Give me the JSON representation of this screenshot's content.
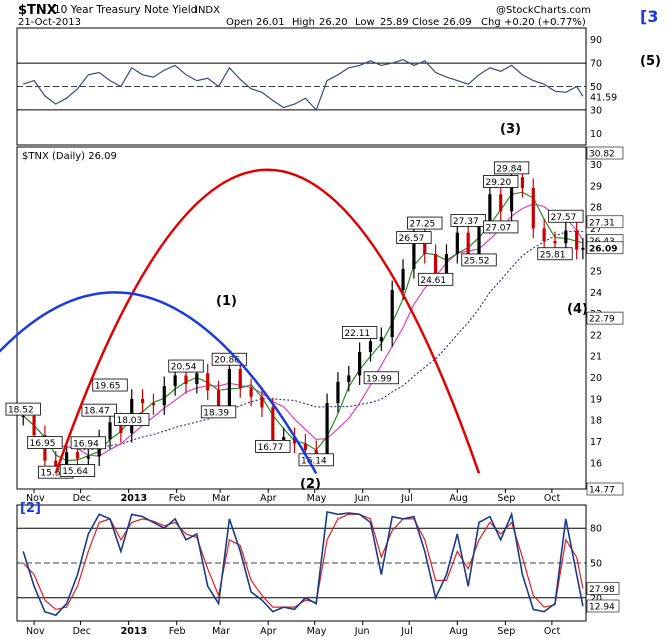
{
  "header": {
    "symbol": "$TNX",
    "name": "10 Year Treasury Note Yield",
    "exchange": "INDX",
    "date": "21-Oct-2013",
    "open_label": "Open",
    "open": "26.01",
    "high_label": "High",
    "high": "26.20",
    "low_label": "Low",
    "low": "25.89",
    "close_label": "Close",
    "close": "26.09",
    "chg_label": "Chg",
    "chg": "+0.20 (+0.77%)",
    "copyright": "@StockCharts.com"
  },
  "wave_labels": {
    "bracket3": "[3",
    "five": "(5)",
    "three": "(3)",
    "one": "(1)",
    "two": "(2)",
    "four": "(4)",
    "bracket2": "[2]"
  },
  "colors": {
    "price_up": "#000000",
    "price_down": "#cc0000",
    "rsi_line": "#3a4a7a",
    "rsi_overbought_fill": "#3a7bd5",
    "price_line_red": "#e02020",
    "ma_pink": "#e040c0",
    "ma_green": "#2a8a2a",
    "ma_darkblue": "#1a1a7a",
    "cycle_red": "#e00000",
    "cycle_blue": "#1a3adf",
    "stoch_blue": "#1a3a8a",
    "stoch_red": "#e02020",
    "panel_bg": "#ffffff",
    "frame": "#000000"
  },
  "chart_data": [
    {
      "type": "line",
      "panel": "RSI",
      "ylim": [
        0,
        100
      ],
      "yticks": [
        10,
        30,
        50,
        70,
        90
      ],
      "reference_lines": [
        30,
        50,
        70
      ],
      "last_value": "41.59",
      "x": [
        "2012-10-25",
        "2012-11-01",
        "2012-11-08",
        "2012-11-15",
        "2012-11-22",
        "2012-11-29",
        "2012-12-06",
        "2012-12-13",
        "2012-12-20",
        "2012-12-27",
        "2013-01-03",
        "2013-01-10",
        "2013-01-17",
        "2013-01-24",
        "2013-01-31",
        "2013-02-07",
        "2013-02-14",
        "2013-02-21",
        "2013-02-28",
        "2013-03-07",
        "2013-03-14",
        "2013-03-21",
        "2013-03-28",
        "2013-04-04",
        "2013-04-11",
        "2013-04-18",
        "2013-04-25",
        "2013-05-02",
        "2013-05-09",
        "2013-05-16",
        "2013-05-23",
        "2013-05-30",
        "2013-06-06",
        "2013-06-13",
        "2013-06-20",
        "2013-06-27",
        "2013-07-04",
        "2013-07-11",
        "2013-07-18",
        "2013-07-25",
        "2013-08-01",
        "2013-08-08",
        "2013-08-15",
        "2013-08-22",
        "2013-08-29",
        "2013-09-05",
        "2013-09-12",
        "2013-09-19",
        "2013-09-26",
        "2013-10-03",
        "2013-10-10",
        "2013-10-17",
        "2013-10-21"
      ],
      "values": [
        52,
        55,
        42,
        35,
        40,
        48,
        60,
        62,
        55,
        50,
        66,
        60,
        58,
        64,
        68,
        60,
        55,
        57,
        50,
        66,
        56,
        48,
        45,
        38,
        32,
        35,
        40,
        30,
        55,
        60,
        66,
        68,
        72,
        68,
        70,
        73,
        68,
        72,
        62,
        58,
        55,
        52,
        60,
        66,
        63,
        68,
        60,
        55,
        52,
        46,
        45,
        50,
        41.59
      ]
    },
    {
      "type": "candlestick",
      "panel": "Price",
      "title": "$TNX (Daily) 26.09",
      "ylim": [
        14.77,
        30.82
      ],
      "yticks": [
        16,
        17,
        18,
        19,
        20,
        21,
        22,
        23,
        24,
        25,
        26,
        27,
        28,
        29,
        30
      ],
      "xtick_labels": [
        "Nov",
        "Dec",
        "2013",
        "Feb",
        "Mar",
        "Apr",
        "May",
        "Jun",
        "Jul",
        "Aug",
        "Sep",
        "Oct"
      ],
      "last_value": "26.09",
      "right_axis_labels": [
        "30.82",
        "27.31",
        "26.43",
        "26.09",
        "22.79",
        "14.77"
      ],
      "x": [
        "2012-10-25",
        "2012-11-01",
        "2012-11-08",
        "2012-11-15",
        "2012-11-22",
        "2012-11-29",
        "2012-12-06",
        "2012-12-13",
        "2012-12-20",
        "2012-12-27",
        "2013-01-03",
        "2013-01-10",
        "2013-01-17",
        "2013-01-24",
        "2013-01-31",
        "2013-02-07",
        "2013-02-14",
        "2013-02-21",
        "2013-02-28",
        "2013-03-07",
        "2013-03-14",
        "2013-03-21",
        "2013-03-28",
        "2013-04-04",
        "2013-04-11",
        "2013-04-18",
        "2013-04-25",
        "2013-05-02",
        "2013-05-09",
        "2013-05-16",
        "2013-05-23",
        "2013-05-30",
        "2013-06-06",
        "2013-06-13",
        "2013-06-20",
        "2013-06-27",
        "2013-07-04",
        "2013-07-11",
        "2013-07-18",
        "2013-07-25",
        "2013-08-01",
        "2013-08-08",
        "2013-08-15",
        "2013-08-22",
        "2013-08-29",
        "2013-09-05",
        "2013-09-12",
        "2013-09-19",
        "2013-09-26",
        "2013-10-03",
        "2013-10-10",
        "2013-10-17",
        "2013-10-21"
      ],
      "close": [
        18.2,
        17.3,
        16.1,
        15.7,
        16.5,
        16.2,
        16.3,
        17.1,
        17.9,
        17.4,
        19.0,
        18.8,
        18.7,
        19.6,
        20.1,
        19.7,
        20.2,
        19.4,
        18.6,
        20.4,
        19.5,
        19.1,
        18.6,
        17.0,
        17.2,
        16.9,
        16.6,
        16.3,
        18.8,
        19.8,
        20.1,
        21.2,
        21.7,
        21.9,
        24.1,
        25.1,
        26.6,
        25.8,
        24.9,
        25.8,
        26.8,
        25.7,
        27.2,
        28.6,
        27.8,
        29.4,
        28.9,
        27.0,
        26.4,
        26.3,
        26.9,
        26.0,
        26.09
      ],
      "annotations": [
        {
          "label": "18.52",
          "date": "2012-10-25",
          "value": 18.52
        },
        {
          "label": "16.95",
          "date": "2012-11-08",
          "value": 16.95
        },
        {
          "label": "15.56",
          "date": "2012-11-15",
          "value": 15.56
        },
        {
          "label": "15.64",
          "date": "2012-11-29",
          "value": 15.64
        },
        {
          "label": "18.47",
          "date": "2012-12-13",
          "value": 18.47
        },
        {
          "label": "16.94",
          "date": "2012-12-06",
          "value": 16.94
        },
        {
          "label": "19.65",
          "date": "2012-12-20",
          "value": 19.65
        },
        {
          "label": "18.03",
          "date": "2013-01-03",
          "value": 18.03
        },
        {
          "label": "20.54",
          "date": "2013-02-07",
          "value": 20.54
        },
        {
          "label": "20.86",
          "date": "2013-03-07",
          "value": 20.86
        },
        {
          "label": "18.39",
          "date": "2013-02-28",
          "value": 18.39
        },
        {
          "label": "16.77",
          "date": "2013-04-04",
          "value": 16.77
        },
        {
          "label": "16.14",
          "date": "2013-05-02",
          "value": 16.14
        },
        {
          "label": "22.11",
          "date": "2013-05-30",
          "value": 22.11
        },
        {
          "label": "19.99",
          "date": "2013-06-13",
          "value": 19.99
        },
        {
          "label": "26.57",
          "date": "2013-07-04",
          "value": 26.57
        },
        {
          "label": "27.25",
          "date": "2013-07-11",
          "value": 27.25
        },
        {
          "label": "24.61",
          "date": "2013-07-18",
          "value": 24.61
        },
        {
          "label": "27.37",
          "date": "2013-08-08",
          "value": 27.37
        },
        {
          "label": "25.52",
          "date": "2013-08-15",
          "value": 25.52
        },
        {
          "label": "29.20",
          "date": "2013-08-29",
          "value": 29.2
        },
        {
          "label": "29.84",
          "date": "2013-09-05",
          "value": 29.84
        },
        {
          "label": "27.07",
          "date": "2013-08-29",
          "value": 27.07
        },
        {
          "label": "27.57",
          "date": "2013-10-10",
          "value": 27.57
        },
        {
          "label": "25.81",
          "date": "2013-10-03",
          "value": 25.81
        }
      ]
    },
    {
      "type": "line",
      "panel": "Stochastic",
      "ylim": [
        0,
        100
      ],
      "yticks": [
        20,
        50,
        80
      ],
      "reference_lines": [
        20,
        50,
        80
      ],
      "last_values": [
        "27.98",
        "12.94"
      ],
      "x": [
        "2012-10-25",
        "2012-11-01",
        "2012-11-08",
        "2012-11-15",
        "2012-11-22",
        "2012-11-29",
        "2012-12-06",
        "2012-12-13",
        "2012-12-20",
        "2012-12-27",
        "2013-01-03",
        "2013-01-10",
        "2013-01-17",
        "2013-01-24",
        "2013-01-31",
        "2013-02-07",
        "2013-02-14",
        "2013-02-21",
        "2013-02-28",
        "2013-03-07",
        "2013-03-14",
        "2013-03-21",
        "2013-03-28",
        "2013-04-04",
        "2013-04-11",
        "2013-04-18",
        "2013-04-25",
        "2013-05-02",
        "2013-05-09",
        "2013-05-16",
        "2013-05-23",
        "2013-05-30",
        "2013-06-06",
        "2013-06-13",
        "2013-06-20",
        "2013-06-27",
        "2013-07-04",
        "2013-07-11",
        "2013-07-18",
        "2013-07-25",
        "2013-08-01",
        "2013-08-08",
        "2013-08-15",
        "2013-08-22",
        "2013-08-29",
        "2013-09-05",
        "2013-09-12",
        "2013-09-19",
        "2013-09-26",
        "2013-10-03",
        "2013-10-10",
        "2013-10-17",
        "2013-10-21"
      ],
      "values": [
        60,
        30,
        8,
        5,
        15,
        40,
        75,
        92,
        88,
        60,
        92,
        90,
        85,
        80,
        88,
        70,
        75,
        30,
        15,
        88,
        60,
        25,
        18,
        8,
        12,
        10,
        20,
        15,
        94,
        92,
        93,
        92,
        85,
        40,
        90,
        88,
        90,
        60,
        20,
        40,
        75,
        30,
        85,
        90,
        70,
        92,
        40,
        10,
        8,
        15,
        88,
        40,
        12.94
      ],
      "signal": [
        50,
        40,
        18,
        10,
        12,
        30,
        60,
        85,
        88,
        70,
        85,
        88,
        86,
        82,
        85,
        75,
        72,
        45,
        22,
        70,
        65,
        35,
        22,
        12,
        12,
        12,
        18,
        16,
        70,
        88,
        92,
        92,
        88,
        55,
        78,
        88,
        88,
        70,
        35,
        35,
        60,
        45,
        70,
        85,
        75,
        85,
        55,
        22,
        12,
        14,
        70,
        55,
        27.98
      ]
    }
  ]
}
